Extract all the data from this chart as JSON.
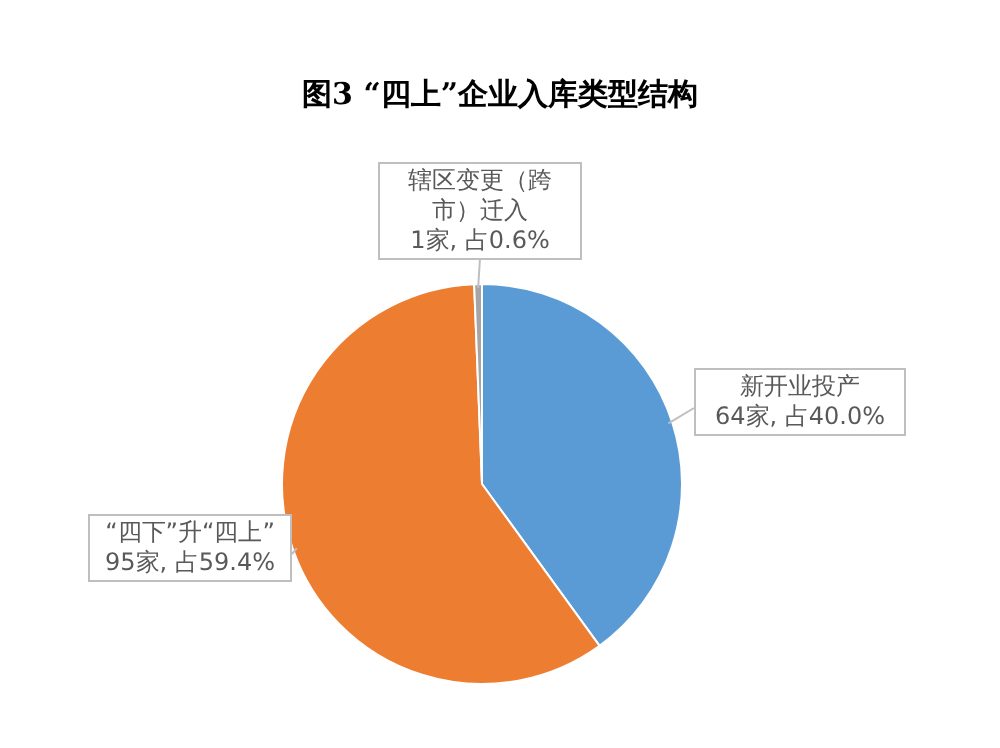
{
  "chart_data": {
    "type": "pie",
    "title": "图3 “四上”企业入库类型结构",
    "categories": [
      "新开业投产",
      "“四下”升“四上”",
      "辖区变更（跨市）迁入"
    ],
    "values": [
      64,
      95,
      1
    ],
    "colors": [
      "#5b9bd5",
      "#ed7d31",
      "#a5a5a5"
    ],
    "value_labels": [
      "64家, 占40.0%",
      "95家, 占59.4%",
      "1家, 占0.6%"
    ]
  }
}
